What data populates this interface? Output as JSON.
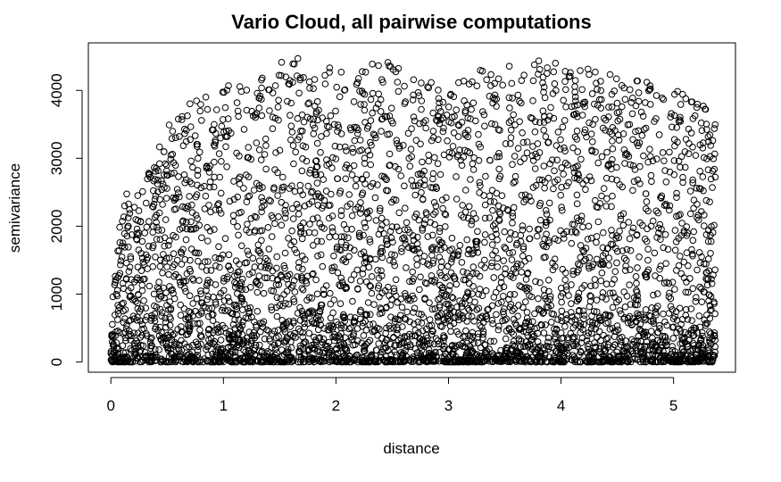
{
  "chart_data": {
    "type": "scatter",
    "title": "Vario Cloud, all pairwise computations",
    "xlabel": "distance",
    "ylabel": "semivariance",
    "xlim": [
      -0.2,
      5.55
    ],
    "ylim": [
      -150,
      4700
    ],
    "xticks": [
      0,
      1,
      2,
      3,
      4,
      5
    ],
    "yticks": [
      0,
      1000,
      2000,
      3000,
      4000
    ],
    "x_tick_labels": [
      "0",
      "1",
      "2",
      "3",
      "4",
      "5"
    ],
    "y_tick_labels": [
      "0",
      "1000",
      "2000",
      "3000",
      "4000"
    ],
    "marker": "open-circle",
    "point_color": "#000000",
    "grid": false,
    "legend": "none",
    "x_range": [
      0.0,
      5.37
    ],
    "y_range": [
      0,
      4520
    ],
    "envelope": [
      {
        "x": 0.0,
        "y_max": 700
      },
      {
        "x": 0.1,
        "y_max": 2450
      },
      {
        "x": 0.3,
        "y_max": 2600
      },
      {
        "x": 0.5,
        "y_max": 3650
      },
      {
        "x": 1.0,
        "y_max": 4050
      },
      {
        "x": 1.3,
        "y_max": 4200
      },
      {
        "x": 1.55,
        "y_max": 4520
      },
      {
        "x": 2.0,
        "y_max": 4350
      },
      {
        "x": 2.5,
        "y_max": 4450
      },
      {
        "x": 3.0,
        "y_max": 4050
      },
      {
        "x": 3.45,
        "y_max": 4450
      },
      {
        "x": 3.9,
        "y_max": 4450
      },
      {
        "x": 4.3,
        "y_max": 4300
      },
      {
        "x": 4.6,
        "y_max": 4300
      },
      {
        "x": 5.0,
        "y_max": 4050
      },
      {
        "x": 5.35,
        "y_max": 3750
      }
    ]
  }
}
